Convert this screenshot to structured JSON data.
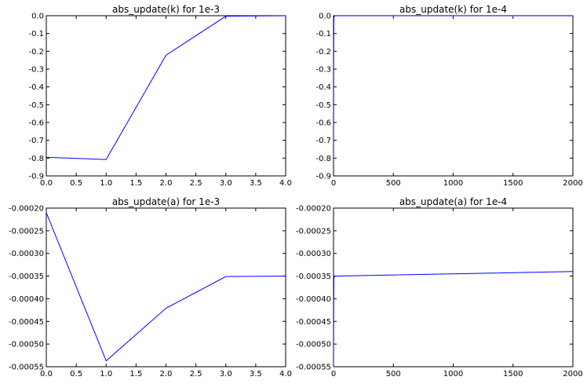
{
  "chart_data": [
    {
      "type": "line",
      "title": "abs_update(k) for 1e-3",
      "xlabel": "",
      "ylabel": "",
      "xlim": [
        0.0,
        4.0
      ],
      "ylim": [
        -0.9,
        0.0
      ],
      "grid": false,
      "x_ticks": [
        "0.0",
        "0.5",
        "1.0",
        "1.5",
        "2.0",
        "2.5",
        "3.0",
        "3.5",
        "4.0"
      ],
      "y_ticks": [
        "0.0",
        "-0.1",
        "-0.2",
        "-0.3",
        "-0.4",
        "-0.5",
        "-0.6",
        "-0.7",
        "-0.8",
        "-0.9"
      ],
      "series": [
        {
          "x": [
            0,
            1,
            2,
            3,
            4
          ],
          "y": [
            -0.795,
            -0.808,
            -0.222,
            -0.003,
            0.0
          ]
        }
      ]
    },
    {
      "type": "line",
      "title": "abs_update(k) for 1e-4",
      "xlabel": "",
      "ylabel": "",
      "xlim": [
        0,
        2000
      ],
      "ylim": [
        -0.9,
        0.0
      ],
      "grid": false,
      "x_ticks": [
        "0",
        "500",
        "1000",
        "1500",
        "2000"
      ],
      "y_ticks": [
        "0.0",
        "-0.1",
        "-0.2",
        "-0.3",
        "-0.4",
        "-0.5",
        "-0.6",
        "-0.7",
        "-0.8",
        "-0.9"
      ],
      "series": [
        {
          "x": [
            0,
            1,
            3,
            10,
            100,
            2000
          ],
          "y": [
            -0.8,
            -0.2,
            -0.01,
            0.0,
            0.0,
            0.0
          ]
        }
      ]
    },
    {
      "type": "line",
      "title": "abs_update(a) for 1e-3",
      "xlabel": "",
      "ylabel": "",
      "xlim": [
        0.0,
        4.0
      ],
      "ylim": [
        -0.00055,
        -0.0002
      ],
      "grid": false,
      "x_ticks": [
        "0.0",
        "0.5",
        "1.0",
        "1.5",
        "2.0",
        "2.5",
        "3.0",
        "3.5",
        "4.0"
      ],
      "y_ticks": [
        "-0.00020",
        "-0.00025",
        "-0.00030",
        "-0.00035",
        "-0.00040",
        "-0.00045",
        "-0.00050",
        "-0.00055"
      ],
      "series": [
        {
          "x": [
            0,
            1,
            2,
            3,
            4
          ],
          "y": [
            -0.00021,
            -0.000537,
            -0.000421,
            -0.000351,
            -0.00035
          ]
        }
      ]
    },
    {
      "type": "line",
      "title": "abs_update(a) for 1e-4",
      "xlabel": "",
      "ylabel": "",
      "xlim": [
        0,
        2000
      ],
      "ylim": [
        -0.00055,
        -0.0002
      ],
      "grid": false,
      "x_ticks": [
        "0",
        "500",
        "1000",
        "1500",
        "2000"
      ],
      "y_ticks": [
        "-0.00020",
        "-0.00025",
        "-0.00030",
        "-0.00035",
        "-0.00040",
        "-0.00045",
        "-0.00050",
        "-0.00055"
      ],
      "series": [
        {
          "x": [
            0,
            1,
            3,
            10,
            2000
          ],
          "y": [
            -0.00055,
            -0.00042,
            -0.000355,
            -0.00035,
            -0.00034
          ]
        }
      ]
    }
  ],
  "colors": {
    "line": "#0000ff",
    "frame": "#000000",
    "background": "#ffffff"
  }
}
